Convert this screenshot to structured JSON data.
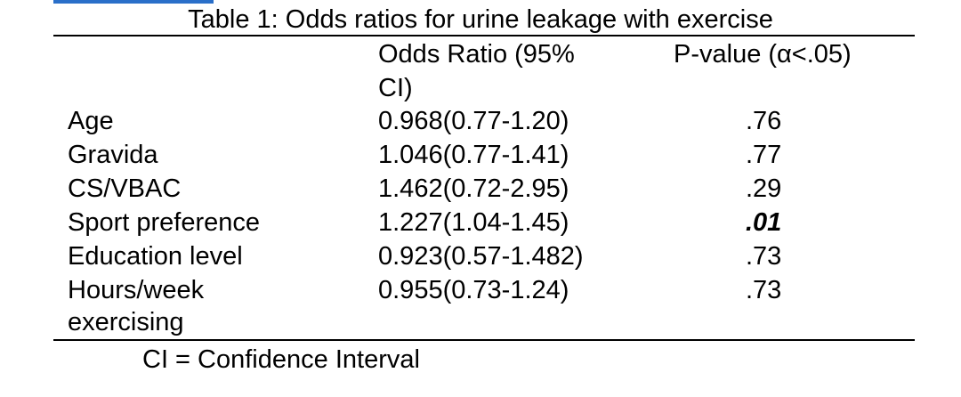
{
  "accent_color": "#2a6fc9",
  "table": {
    "title": "Table 1: Odds ratios for urine leakage with exercise",
    "headers": {
      "variable": "",
      "odds_ratio_line1": "Odds Ratio (95%",
      "odds_ratio_line2": "CI)",
      "p_value": "P-value (α<.05)"
    },
    "rows": [
      {
        "label": "Age",
        "odds_ratio": "0.968(0.77-1.20)",
        "p_value": ".76",
        "emphasis": false
      },
      {
        "label": "Gravida",
        "odds_ratio": "1.046(0.77-1.41)",
        "p_value": ".77",
        "emphasis": false
      },
      {
        "label": "CS/VBAC",
        "odds_ratio": "1.462(0.72-2.95)",
        "p_value": ".29",
        "emphasis": false
      },
      {
        "label": "Sport preference",
        "odds_ratio": "1.227(1.04-1.45)",
        "p_value": ".01",
        "emphasis": true
      },
      {
        "label": "Education level",
        "odds_ratio": "0.923(0.57-1.482)",
        "p_value": ".73",
        "emphasis": false
      },
      {
        "label_line1": "Hours/week",
        "label_line2": "exercising",
        "odds_ratio": "0.955(0.73-1.24)",
        "p_value": ".73",
        "emphasis": false
      }
    ],
    "footnote": "CI = Confidence Interval"
  }
}
